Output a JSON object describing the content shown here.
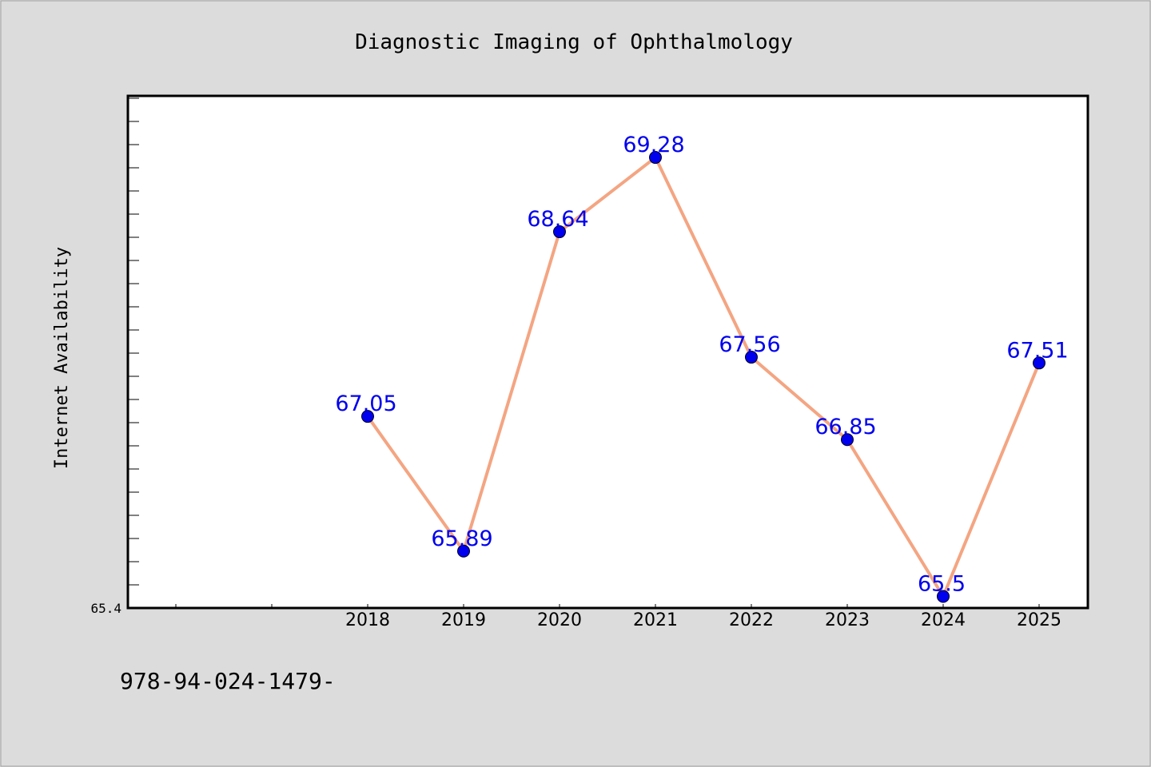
{
  "chart_data": {
    "type": "line",
    "title": "Diagnostic Imaging of Ophthalmology",
    "xlabel": "",
    "ylabel": "Internet Availability",
    "categories": [
      "2018",
      "2019",
      "2020",
      "2021",
      "2022",
      "2023",
      "2024",
      "2025"
    ],
    "series": [
      {
        "values": [
          67.05,
          65.89,
          68.64,
          69.28,
          67.56,
          66.85,
          65.5,
          67.51
        ],
        "data_labels": [
          "67.05",
          "65.89",
          "68.64",
          "69.28",
          "67.56",
          "66.85",
          "65.5",
          "67.51"
        ]
      }
    ],
    "ylim": [
      65.4,
      69.81
    ],
    "y_tick_labels": [
      "65.4"
    ],
    "grid": false,
    "legend": "none",
    "colors": {
      "line": "#f4a582",
      "marker": "#0000ee",
      "label": "#0000ee",
      "axes_bg": "#ffffff",
      "figure_bg": "#dcdcdc"
    }
  },
  "footer_text": "978-94-024-1479-"
}
